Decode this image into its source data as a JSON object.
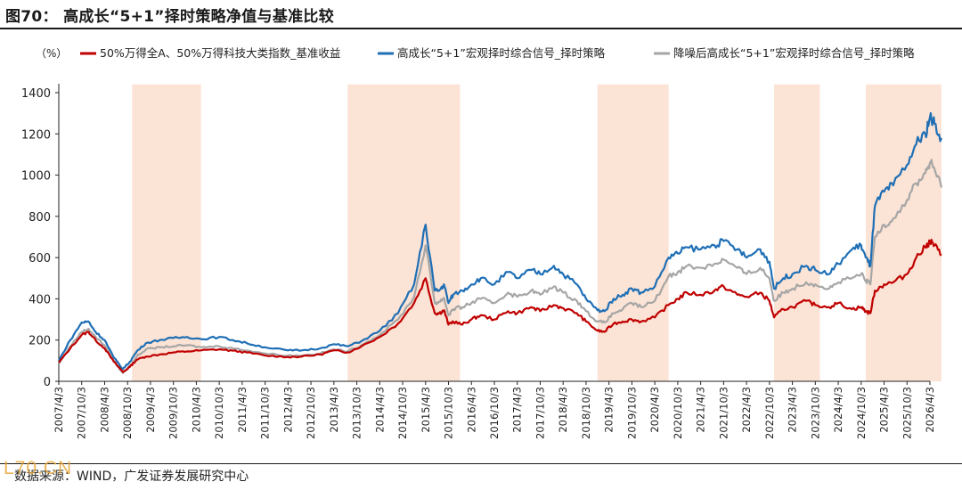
{
  "title": "图70：  高成长“5+1”择时策略净值与基准比较",
  "source": "数据来源：WIND，广发证券发展研究中心",
  "watermark": "L70.CN",
  "chart_data": {
    "type": "line",
    "unit_label": "（%）",
    "ylim": [
      0,
      1400
    ],
    "yticks": [
      0,
      200,
      400,
      600,
      800,
      1000,
      1200,
      1400
    ],
    "grid": false,
    "legend_position": "top",
    "x_tick_labels": [
      "2007/4/3",
      "2007/10/3",
      "2008/4/3",
      "2008/10/3",
      "2009/4/3",
      "2009/10/3",
      "2010/4/3",
      "2010/10/3",
      "2011/4/3",
      "2011/10/3",
      "2012/4/3",
      "2012/10/3",
      "2013/4/3",
      "2013/10/3",
      "2014/4/3",
      "2014/10/3",
      "2015/4/3",
      "2015/10/3",
      "2016/4/3",
      "2016/10/3",
      "2017/4/3",
      "2017/10/3",
      "2018/4/3",
      "2018/10/3",
      "2019/4/3",
      "2019/10/3",
      "2020/4/3",
      "2020/10/3",
      "2021/4/3",
      "2021/10/3",
      "2022/4/3",
      "2022/10/3",
      "2023/4/3",
      "2023/10/3",
      "2024/4/3",
      "2024/10/3",
      "2025/4/3",
      "2025/10/3",
      "2026/4/3"
    ],
    "shaded_periods": [
      {
        "start": 3.2,
        "end": 6.2
      },
      {
        "start": 12.6,
        "end": 17.5
      },
      {
        "start": 23.5,
        "end": 26.6
      },
      {
        "start": 31.2,
        "end": 33.2
      },
      {
        "start": 35.2,
        "end": 38.5
      }
    ],
    "series": [
      {
        "name": "50%万得全A、50%万得科技大类指数_基准收益",
        "color": "#c00000",
        "x": [
          0,
          0.5,
          1,
          1.3,
          1.6,
          2,
          2.4,
          2.8,
          3.1,
          3.4,
          3.8,
          4.4,
          5,
          5.6,
          6.2,
          7,
          7.6,
          8.2,
          9,
          10,
          10.6,
          11.4,
          12,
          12.6,
          13.2,
          14,
          14.8,
          15.5,
          16,
          16.4,
          16.6,
          16.8,
          17,
          17.2,
          17.6,
          18,
          18.4,
          19,
          19.6,
          20,
          20.6,
          21,
          21.6,
          22,
          22.6,
          23,
          23.5,
          23.8,
          24.2,
          24.6,
          25,
          25.4,
          26,
          26.6,
          27,
          27.4,
          28,
          28.6,
          29,
          29.6,
          30,
          30.6,
          31,
          31.2,
          31.6,
          32,
          32.6,
          33,
          33.6,
          34,
          34.6,
          35,
          35.2,
          35.4,
          35.6,
          36,
          36.4,
          37,
          37.4,
          37.8,
          38,
          38.2,
          38.5
        ],
        "y": [
          90,
          160,
          225,
          240,
          200,
          160,
          95,
          45,
          70,
          105,
          120,
          130,
          140,
          145,
          150,
          155,
          148,
          140,
          125,
          118,
          120,
          130,
          150,
          140,
          170,
          215,
          280,
          380,
          500,
          330,
          330,
          345,
          275,
          290,
          275,
          300,
          320,
          300,
          340,
          330,
          360,
          340,
          370,
          355,
          330,
          290,
          245,
          240,
          280,
          290,
          300,
          290,
          310,
          370,
          400,
          430,
          420,
          440,
          460,
          420,
          410,
          430,
          390,
          310,
          350,
          360,
          390,
          370,
          360,
          380,
          350,
          360,
          340,
          330,
          440,
          470,
          480,
          520,
          600,
          650,
          680,
          660,
          610
        ]
      },
      {
        "name": "高成长“5+1”宏观择时综合信号_择时策略",
        "color": "#1f6fb5",
        "x": [
          0,
          0.5,
          1,
          1.3,
          1.6,
          2,
          2.4,
          2.8,
          3.1,
          3.4,
          3.8,
          4.4,
          5,
          5.6,
          6.2,
          7,
          7.6,
          8.2,
          9,
          10,
          10.6,
          11.4,
          12,
          12.6,
          13.2,
          14,
          14.8,
          15.5,
          16,
          16.4,
          16.6,
          16.8,
          17,
          17.2,
          17.6,
          18,
          18.4,
          19,
          19.6,
          20,
          20.6,
          21,
          21.6,
          22,
          22.6,
          23,
          23.5,
          23.8,
          24.2,
          24.6,
          25,
          25.4,
          26,
          26.6,
          27,
          27.4,
          28,
          28.6,
          29,
          29.6,
          30,
          30.6,
          31,
          31.2,
          31.6,
          32,
          32.6,
          33,
          33.6,
          34,
          34.6,
          35,
          35.2,
          35.4,
          35.6,
          36,
          36.4,
          37,
          37.4,
          37.8,
          38,
          38.2,
          38.5
        ],
        "y": [
          100,
          200,
          285,
          290,
          240,
          200,
          115,
          60,
          95,
          145,
          185,
          200,
          210,
          215,
          205,
          215,
          200,
          185,
          165,
          150,
          150,
          160,
          180,
          170,
          195,
          245,
          330,
          470,
          760,
          440,
          440,
          470,
          380,
          420,
          440,
          470,
          500,
          470,
          530,
          500,
          540,
          520,
          560,
          520,
          470,
          400,
          345,
          340,
          400,
          420,
          450,
          430,
          460,
          600,
          620,
          650,
          640,
          660,
          680,
          640,
          600,
          640,
          580,
          450,
          500,
          520,
          560,
          540,
          520,
          570,
          640,
          660,
          600,
          560,
          850,
          920,
          950,
          1050,
          1150,
          1200,
          1280,
          1250,
          1180
        ]
      },
      {
        "name": "降噪后高成长“5+1”宏观择时综合信号_择时策略",
        "color": "#a6a6a6",
        "x": [
          0,
          0.5,
          1,
          1.3,
          1.6,
          2,
          2.4,
          2.8,
          3.1,
          3.4,
          3.8,
          4.4,
          5,
          5.6,
          6.2,
          7,
          7.6,
          8.2,
          9,
          10,
          10.6,
          11.4,
          12,
          12.6,
          13.2,
          14,
          14.8,
          15.5,
          16,
          16.4,
          16.6,
          16.8,
          17,
          17.2,
          17.6,
          18,
          18.4,
          19,
          19.6,
          20,
          20.6,
          21,
          21.6,
          22,
          22.6,
          23,
          23.5,
          23.8,
          24.2,
          24.6,
          25,
          25.4,
          26,
          26.6,
          27,
          27.4,
          28,
          28.6,
          29,
          29.6,
          30,
          30.6,
          31,
          31.2,
          31.6,
          32,
          32.6,
          33,
          33.6,
          34,
          34.6,
          35,
          35.2,
          35.4,
          35.6,
          36,
          36.4,
          37,
          37.4,
          37.8,
          38,
          38.2,
          38.5
        ],
        "y": [
          85,
          170,
          240,
          255,
          215,
          175,
          100,
          40,
          75,
          120,
          155,
          165,
          170,
          175,
          165,
          170,
          160,
          150,
          135,
          125,
          125,
          135,
          155,
          145,
          175,
          225,
          300,
          410,
          660,
          380,
          385,
          405,
          320,
          350,
          360,
          380,
          400,
          380,
          430,
          410,
          440,
          420,
          460,
          430,
          390,
          340,
          290,
          285,
          330,
          350,
          380,
          360,
          390,
          510,
          530,
          560,
          550,
          570,
          590,
          550,
          520,
          550,
          500,
          390,
          430,
          450,
          480,
          470,
          450,
          480,
          500,
          520,
          490,
          470,
          700,
          760,
          790,
          880,
          960,
          1010,
          1060,
          1030,
          940
        ]
      }
    ]
  }
}
